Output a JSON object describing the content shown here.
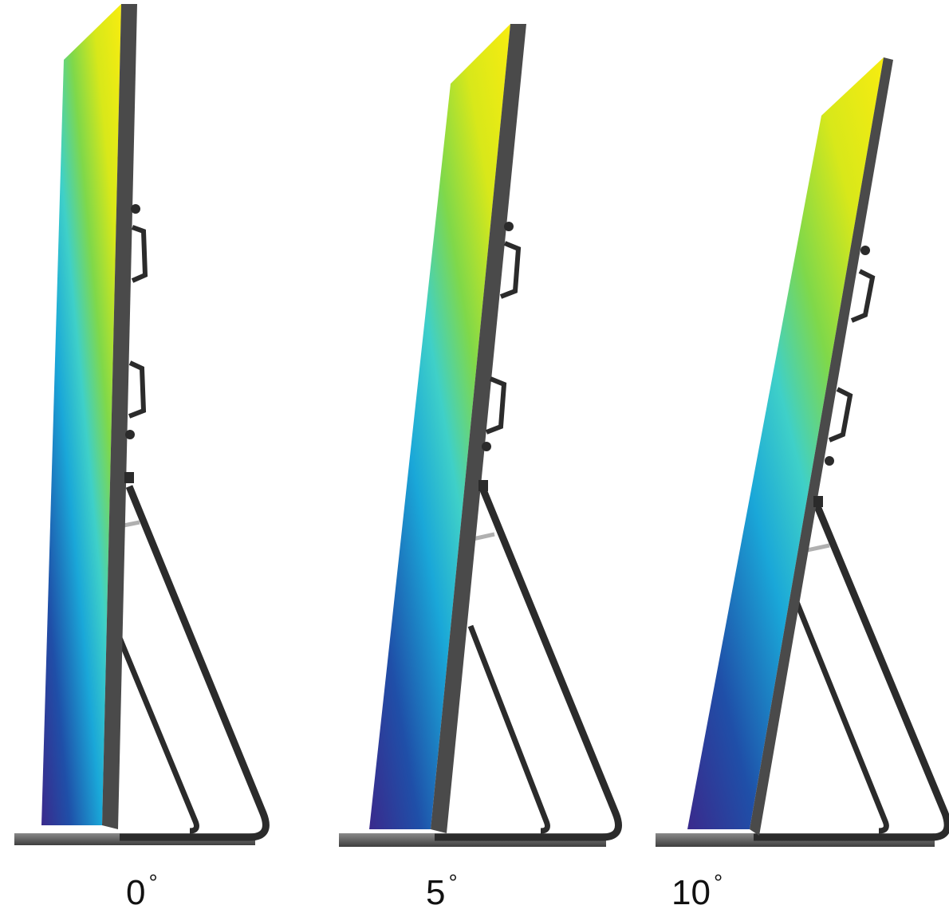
{
  "figure": {
    "description_icon": "led-poster-display-stand-icon",
    "panels": [
      {
        "angle_value": "0",
        "degree_symbol": "°"
      },
      {
        "angle_value": "5",
        "degree_symbol": "°"
      },
      {
        "angle_value": "10",
        "degree_symbol": "°"
      }
    ],
    "colors": {
      "screen_gradient": [
        "#3a2a8c",
        "#1f4fa8",
        "#1aa7d8",
        "#3fd0c8",
        "#7fd84a",
        "#d8e81a",
        "#f7ec10"
      ],
      "frame": "#4a4a4a",
      "stand": "#2b2b2b",
      "base": "#5a5a5a"
    }
  }
}
